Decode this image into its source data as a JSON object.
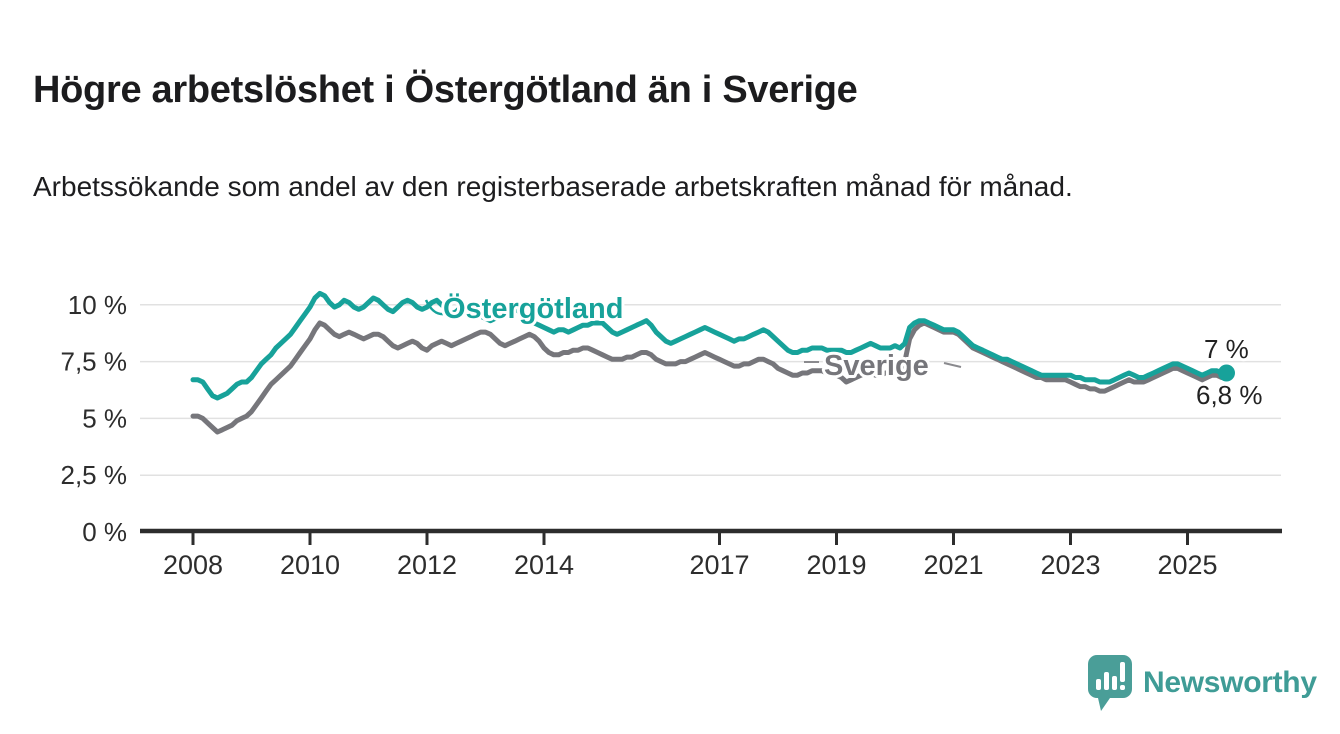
{
  "title": "Högre arbetslöshet i Östergötland än i Sverige",
  "subtitle": "Arbetssökande som andel av den registerbaserade arbetskraften månad för månad.",
  "branding": {
    "name": "Newsworthy",
    "icon": "newsworthy-speech-bubble-bar-chart-icon",
    "color": "#3f9c96"
  },
  "colors": {
    "ostergotland_line": "#17a29a",
    "sverige_line": "#76767b",
    "text": "#1d1d1f",
    "axis": "#2d2d2d",
    "grid": "#e1e1e1",
    "background": "#ffffff"
  },
  "chart_data": {
    "type": "line",
    "title": "Högre arbetslöshet i Östergötland än i Sverige",
    "subtitle": "Arbetssökande som andel av den registerbaserade arbetskraften månad för månad.",
    "frequency": "monthly",
    "x_start": "2008-01",
    "x_end": "2025-09",
    "x_ticks": [
      2008,
      2010,
      2012,
      2014,
      2017,
      2019,
      2021,
      2023,
      2025
    ],
    "y_ticks": [
      {
        "value": 0,
        "label": "0 %"
      },
      {
        "value": 2.5,
        "label": "2,5 %"
      },
      {
        "value": 5,
        "label": "5 %"
      },
      {
        "value": 7.5,
        "label": "7,5 %"
      },
      {
        "value": 10,
        "label": "10 %"
      }
    ],
    "ylim": [
      0,
      10.8
    ],
    "grid": true,
    "legend": "inline-labels",
    "series": [
      {
        "name": "Östergötland",
        "color": "#17a29a",
        "end_label": "7 %",
        "end_value": 7.0,
        "values": [
          6.7,
          6.7,
          6.6,
          6.3,
          6.0,
          5.9,
          6.0,
          6.1,
          6.3,
          6.5,
          6.6,
          6.6,
          6.8,
          7.1,
          7.4,
          7.6,
          7.8,
          8.1,
          8.3,
          8.5,
          8.7,
          9.0,
          9.3,
          9.6,
          9.9,
          10.3,
          10.5,
          10.4,
          10.1,
          9.9,
          10.0,
          10.2,
          10.1,
          9.9,
          9.8,
          9.9,
          10.1,
          10.3,
          10.2,
          10.0,
          9.8,
          9.7,
          9.9,
          10.1,
          10.2,
          10.1,
          9.9,
          9.8,
          9.9,
          10.1,
          10.2,
          10.0,
          9.8,
          9.6,
          9.7,
          9.9,
          10.0,
          9.9,
          9.7,
          9.5,
          9.4,
          9.3,
          9.4,
          9.5,
          9.6,
          9.7,
          9.8,
          9.7,
          9.6,
          9.4,
          9.2,
          9.1,
          9.0,
          8.9,
          8.8,
          8.9,
          8.9,
          8.8,
          8.9,
          9.0,
          9.1,
          9.1,
          9.2,
          9.2,
          9.2,
          9.0,
          8.8,
          8.7,
          8.8,
          8.9,
          9.0,
          9.1,
          9.2,
          9.3,
          9.1,
          8.8,
          8.6,
          8.4,
          8.3,
          8.4,
          8.5,
          8.6,
          8.7,
          8.8,
          8.9,
          9.0,
          8.9,
          8.8,
          8.7,
          8.6,
          8.5,
          8.4,
          8.5,
          8.5,
          8.6,
          8.7,
          8.8,
          8.9,
          8.8,
          8.6,
          8.4,
          8.2,
          8.0,
          7.9,
          7.9,
          8.0,
          8.0,
          8.1,
          8.1,
          8.1,
          8.0,
          8.0,
          8.0,
          8.0,
          7.9,
          7.9,
          8.0,
          8.1,
          8.2,
          8.3,
          8.2,
          8.1,
          8.1,
          8.1,
          8.2,
          8.1,
          8.3,
          9.0,
          9.2,
          9.3,
          9.3,
          9.2,
          9.1,
          9.0,
          8.9,
          8.9,
          8.9,
          8.8,
          8.6,
          8.4,
          8.2,
          8.1,
          8.0,
          7.9,
          7.8,
          7.7,
          7.6,
          7.6,
          7.5,
          7.4,
          7.3,
          7.2,
          7.1,
          7.0,
          6.9,
          6.9,
          6.9,
          6.9,
          6.9,
          6.9,
          6.9,
          6.8,
          6.8,
          6.7,
          6.7,
          6.7,
          6.6,
          6.6,
          6.6,
          6.7,
          6.8,
          6.9,
          7.0,
          6.9,
          6.8,
          6.8,
          6.9,
          7.0,
          7.1,
          7.2,
          7.3,
          7.4,
          7.4,
          7.3,
          7.2,
          7.1,
          7.0,
          6.9,
          7.0,
          7.1,
          7.1,
          7.0,
          7.0
        ]
      },
      {
        "name": "Sverige",
        "color": "#76767b",
        "end_label": "6,8 %",
        "end_value": 6.8,
        "values": [
          5.1,
          5.1,
          5.0,
          4.8,
          4.6,
          4.4,
          4.5,
          4.6,
          4.7,
          4.9,
          5.0,
          5.1,
          5.3,
          5.6,
          5.9,
          6.2,
          6.5,
          6.7,
          6.9,
          7.1,
          7.3,
          7.6,
          7.9,
          8.2,
          8.5,
          8.9,
          9.2,
          9.1,
          8.9,
          8.7,
          8.6,
          8.7,
          8.8,
          8.7,
          8.6,
          8.5,
          8.6,
          8.7,
          8.7,
          8.6,
          8.4,
          8.2,
          8.1,
          8.2,
          8.3,
          8.4,
          8.3,
          8.1,
          8.0,
          8.2,
          8.3,
          8.4,
          8.3,
          8.2,
          8.3,
          8.4,
          8.5,
          8.6,
          8.7,
          8.8,
          8.8,
          8.7,
          8.5,
          8.3,
          8.2,
          8.3,
          8.4,
          8.5,
          8.6,
          8.7,
          8.6,
          8.4,
          8.1,
          7.9,
          7.8,
          7.8,
          7.9,
          7.9,
          8.0,
          8.0,
          8.1,
          8.1,
          8.0,
          7.9,
          7.8,
          7.7,
          7.6,
          7.6,
          7.6,
          7.7,
          7.7,
          7.8,
          7.9,
          7.9,
          7.8,
          7.6,
          7.5,
          7.4,
          7.4,
          7.4,
          7.5,
          7.5,
          7.6,
          7.7,
          7.8,
          7.9,
          7.8,
          7.7,
          7.6,
          7.5,
          7.4,
          7.3,
          7.3,
          7.4,
          7.4,
          7.5,
          7.6,
          7.6,
          7.5,
          7.4,
          7.2,
          7.1,
          7.0,
          6.9,
          6.9,
          7.0,
          7.0,
          7.1,
          7.1,
          7.1,
          7.0,
          7.0,
          6.9,
          6.8,
          6.6,
          6.7,
          6.8,
          6.9,
          7.0,
          7.0,
          6.9,
          6.9,
          7.0,
          7.0,
          7.0,
          7.1,
          7.5,
          8.5,
          8.9,
          9.1,
          9.2,
          9.1,
          9.0,
          8.9,
          8.8,
          8.8,
          8.8,
          8.7,
          8.5,
          8.3,
          8.1,
          8.0,
          7.9,
          7.8,
          7.7,
          7.6,
          7.5,
          7.4,
          7.3,
          7.2,
          7.1,
          7.0,
          6.9,
          6.8,
          6.8,
          6.7,
          6.7,
          6.7,
          6.7,
          6.7,
          6.6,
          6.5,
          6.4,
          6.4,
          6.3,
          6.3,
          6.2,
          6.2,
          6.3,
          6.4,
          6.5,
          6.6,
          6.7,
          6.6,
          6.6,
          6.6,
          6.7,
          6.8,
          6.9,
          7.0,
          7.1,
          7.2,
          7.2,
          7.1,
          7.0,
          6.9,
          6.8,
          6.7,
          6.8,
          6.9,
          6.9,
          6.8,
          6.8
        ]
      }
    ]
  }
}
